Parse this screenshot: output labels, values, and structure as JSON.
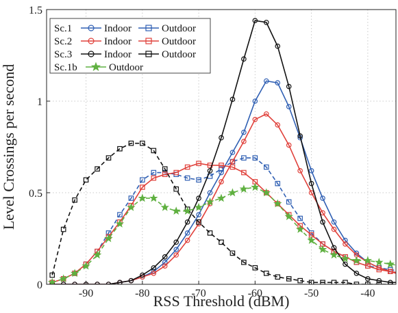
{
  "chart_data": {
    "type": "line",
    "xlabel": "RSS Threshold (dBM)",
    "ylabel": "Level Crossings per second",
    "xlim": [
      -97,
      -35
    ],
    "ylim": [
      0,
      1.5
    ],
    "x_ticks": [
      -90,
      -80,
      -70,
      -60,
      -50,
      -40
    ],
    "x_tick_labels": [
      "-90",
      "-80",
      "-70",
      "-60",
      "-50",
      "-40"
    ],
    "y_ticks": [
      0,
      0.5,
      1,
      1.5
    ],
    "y_tick_labels": [
      "0",
      "0.5",
      "1",
      "1.5"
    ],
    "grid": true,
    "legend_position": "top-left",
    "legend": [
      {
        "scenario": "Sc.1",
        "labels": [
          "Indoor",
          "Outdoor"
        ]
      },
      {
        "scenario": "Sc.2",
        "labels": [
          "Indoor",
          "Outdoor"
        ]
      },
      {
        "scenario": "Sc.3",
        "labels": [
          "Indoor",
          "Outdoor"
        ]
      },
      {
        "scenario": "Sc.1b",
        "labels": [
          "Outdoor"
        ]
      }
    ],
    "x": [
      -96,
      -94,
      -92,
      -90,
      -88,
      -86,
      -84,
      -82,
      -80,
      -78,
      -76,
      -74,
      -72,
      -70,
      -68,
      -66,
      -64,
      -62,
      -60,
      -58,
      -56,
      -54,
      -52,
      -50,
      -48,
      -46,
      -44,
      -42,
      -40,
      -38,
      -36,
      -34
    ],
    "series": [
      {
        "id": "sc1-indoor",
        "color": "#2f5fb3",
        "marker": "circle",
        "dash": "solid",
        "values": [
          0,
          0,
          0,
          0,
          0,
          0,
          0.01,
          0.02,
          0.04,
          0.07,
          0.12,
          0.19,
          0.28,
          0.38,
          0.5,
          0.61,
          0.72,
          0.83,
          1.0,
          1.11,
          1.1,
          0.97,
          0.8,
          0.62,
          0.47,
          0.34,
          0.24,
          0.17,
          0.12,
          0.09,
          0.07,
          0.06
        ]
      },
      {
        "id": "sc1-outdoor",
        "color": "#2f5fb3",
        "marker": "square",
        "dash": "dashed",
        "values": [
          0.01,
          0.03,
          0.06,
          0.11,
          0.18,
          0.28,
          0.38,
          0.47,
          0.57,
          0.61,
          0.61,
          0.6,
          0.58,
          0.57,
          0.59,
          0.63,
          0.67,
          0.69,
          0.69,
          0.64,
          0.55,
          0.45,
          0.36,
          0.28,
          0.22,
          0.18,
          0.15,
          0.12,
          0.1,
          0.09,
          0.08,
          0.07
        ]
      },
      {
        "id": "sc2-indoor",
        "color": "#e0403a",
        "marker": "circle",
        "dash": "solid",
        "values": [
          0,
          0,
          0,
          0,
          0,
          0,
          0.01,
          0.02,
          0.04,
          0.06,
          0.1,
          0.16,
          0.24,
          0.33,
          0.44,
          0.56,
          0.67,
          0.78,
          0.9,
          0.93,
          0.87,
          0.76,
          0.62,
          0.5,
          0.39,
          0.3,
          0.22,
          0.16,
          0.12,
          0.09,
          0.07,
          0.05
        ]
      },
      {
        "id": "sc2-outdoor",
        "color": "#e0403a",
        "marker": "square",
        "dash": "solid",
        "values": [
          0.01,
          0.03,
          0.06,
          0.11,
          0.18,
          0.26,
          0.34,
          0.43,
          0.53,
          0.58,
          0.6,
          0.61,
          0.64,
          0.66,
          0.65,
          0.65,
          0.64,
          0.61,
          0.56,
          0.5,
          0.44,
          0.38,
          0.32,
          0.27,
          0.22,
          0.18,
          0.15,
          0.12,
          0.1,
          0.08,
          0.07,
          0.06
        ]
      },
      {
        "id": "sc3-indoor",
        "color": "#111111",
        "marker": "circle",
        "dash": "solid",
        "values": [
          0,
          0,
          0,
          0,
          0,
          0,
          0.01,
          0.02,
          0.05,
          0.09,
          0.15,
          0.23,
          0.34,
          0.47,
          0.62,
          0.8,
          1.01,
          1.23,
          1.44,
          1.43,
          1.3,
          1.08,
          0.81,
          0.55,
          0.34,
          0.2,
          0.11,
          0.06,
          0.03,
          0.02,
          0.01,
          0.01
        ]
      },
      {
        "id": "sc3-outdoor",
        "color": "#111111",
        "marker": "square",
        "dash": "dashed",
        "values": [
          0.05,
          0.3,
          0.46,
          0.57,
          0.63,
          0.69,
          0.74,
          0.77,
          0.77,
          0.73,
          0.63,
          0.52,
          0.41,
          0.34,
          0.28,
          0.23,
          0.17,
          0.12,
          0.09,
          0.06,
          0.04,
          0.03,
          0.02,
          0.01,
          0.01,
          0.01,
          0.01,
          0,
          0,
          0,
          0,
          0
        ]
      },
      {
        "id": "sc1b-outdoor",
        "color": "#5fb040",
        "marker": "star",
        "dash": "dashed",
        "values": [
          0.01,
          0.03,
          0.06,
          0.1,
          0.16,
          0.25,
          0.33,
          0.42,
          0.47,
          0.47,
          0.42,
          0.4,
          0.4,
          0.42,
          0.45,
          0.47,
          0.5,
          0.52,
          0.53,
          0.5,
          0.44,
          0.37,
          0.3,
          0.24,
          0.19,
          0.16,
          0.14,
          0.13,
          0.13,
          0.12,
          0.11,
          0.1
        ]
      }
    ]
  }
}
